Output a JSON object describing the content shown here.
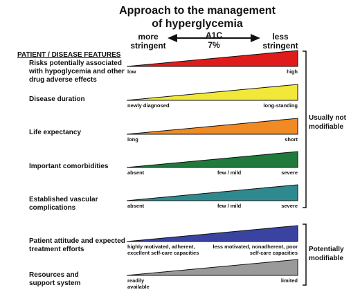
{
  "title_line1": "Approach to the management",
  "title_line2": "of hyperglycemia",
  "more_stringent_1": "more",
  "more_stringent_2": "stringent",
  "less_stringent_1": "less",
  "less_stringent_2": "stringent",
  "a1c_label": "A1C",
  "a1c_value": "7%",
  "section_title": "PATIENT / DISEASE FEATURES",
  "features": [
    {
      "label": "Risks potentially associated with hypoglycemia and other drug adverse effects",
      "color": "#e01b1b",
      "left": "low",
      "middle": "",
      "right": "high"
    },
    {
      "label": "Disease duration",
      "color": "#f2e83a",
      "left": "newly diagnosed",
      "middle": "",
      "right": "long-standing"
    },
    {
      "label": "Life expectancy",
      "color": "#f08a24",
      "left": "long",
      "middle": "",
      "right": "short"
    },
    {
      "label": "Important comorbidities",
      "color": "#1f7a3c",
      "left": "absent",
      "middle": "few / mild",
      "right": "severe"
    },
    {
      "label": "Established vascular complications",
      "color": "#2f8a8f",
      "left": "absent",
      "middle": "few / mild",
      "right": "severe"
    },
    {
      "label": "Patient attitude and expected treatment efforts",
      "color": "#3a44a0",
      "left": "highly motivated, adherent, excellent self-care capacities",
      "middle": "",
      "right": "less motivated, nonadherent, poor self-care capacities"
    },
    {
      "label": "Resources and support system",
      "color": "#9a9a9a",
      "left": "readily available",
      "middle": "",
      "right": "limited"
    }
  ],
  "group_usually_not_modifiable": "Usually not modifiable",
  "group_potentially_modifiable": "Potentially modifiable"
}
